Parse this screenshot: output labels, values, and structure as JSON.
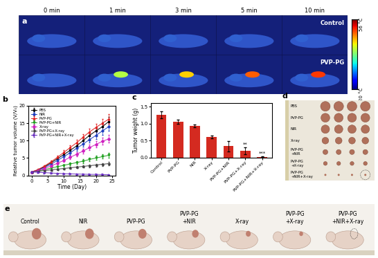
{
  "chart_data": [
    {
      "type": "line",
      "title": "b",
      "x_label": "Time (Day)",
      "y_label": "Relative tumor volume (V/V₀)",
      "x": [
        0,
        2,
        4,
        6,
        8,
        10,
        12,
        14,
        16,
        18,
        20,
        22,
        24
      ],
      "xlim": [
        -1,
        26
      ],
      "xticks": [
        0,
        5,
        10,
        15,
        20,
        25
      ],
      "ylim": [
        0,
        20
      ],
      "yticks": [
        0,
        5,
        10,
        15,
        20
      ],
      "legend": "upper left",
      "series": [
        {
          "name": "PBS",
          "color": "#000000",
          "marker": "square",
          "values": [
            1,
            1.6,
            2.5,
            3.6,
            4.8,
            6.0,
            7.2,
            8.5,
            10.0,
            11.5,
            12.8,
            14.0,
            15.5
          ],
          "errors": [
            0,
            0.2,
            0.3,
            0.4,
            0.5,
            0.6,
            0.7,
            0.8,
            0.9,
            1.0,
            1.1,
            1.2,
            1.4
          ]
        },
        {
          "name": "NIR",
          "color": "#2040c0",
          "marker": "circle",
          "values": [
            1,
            1.5,
            2.3,
            3.2,
            4.3,
            5.4,
            6.5,
            7.8,
            9.0,
            10.3,
            11.5,
            12.8,
            14.0
          ],
          "errors": [
            0,
            0.2,
            0.3,
            0.3,
            0.4,
            0.5,
            0.6,
            0.7,
            0.8,
            0.9,
            1.0,
            1.1,
            1.2
          ]
        },
        {
          "name": "PVP-PG",
          "color": "#e02020",
          "marker": "triangle_up",
          "values": [
            1,
            1.7,
            2.7,
            3.9,
            5.2,
            6.6,
            8.0,
            9.4,
            11.0,
            12.5,
            13.8,
            15.0,
            16.2
          ],
          "errors": [
            0,
            0.2,
            0.3,
            0.4,
            0.5,
            0.6,
            0.7,
            0.8,
            0.9,
            1.0,
            1.1,
            1.2,
            1.4
          ]
        },
        {
          "name": "PVP-PG+NIR",
          "color": "#20a020",
          "marker": "triangle_down",
          "values": [
            1,
            1.3,
            1.7,
            2.1,
            2.5,
            2.9,
            3.3,
            3.7,
            4.1,
            4.6,
            5.0,
            5.4,
            5.8
          ],
          "errors": [
            0,
            0.1,
            0.2,
            0.2,
            0.3,
            0.3,
            0.4,
            0.4,
            0.5,
            0.5,
            0.6,
            0.6,
            0.7
          ]
        },
        {
          "name": "X-ray",
          "color": "#d020c0",
          "marker": "diamond",
          "values": [
            1,
            1.4,
            2.0,
            2.7,
            3.5,
            4.3,
            5.2,
            6.1,
            7.0,
            8.0,
            8.9,
            9.8,
            10.5
          ],
          "errors": [
            0,
            0.1,
            0.2,
            0.3,
            0.3,
            0.4,
            0.5,
            0.6,
            0.7,
            0.8,
            0.9,
            1.0,
            1.1
          ]
        },
        {
          "name": "PVP-PG+X-ray",
          "color": "#404040",
          "marker": "triangle_left",
          "values": [
            1,
            1.2,
            1.4,
            1.6,
            1.8,
            2.0,
            2.2,
            2.4,
            2.6,
            2.8,
            3.0,
            3.2,
            3.4
          ],
          "errors": [
            0,
            0.1,
            0.1,
            0.2,
            0.2,
            0.2,
            0.3,
            0.3,
            0.3,
            0.4,
            0.4,
            0.4,
            0.5
          ]
        },
        {
          "name": "PVP-PG+NIR+X-ray",
          "color": "#6a30c0",
          "marker": "triangle_right",
          "values": [
            1,
            0.9,
            0.8,
            0.7,
            0.6,
            0.5,
            0.45,
            0.4,
            0.35,
            0.3,
            0.3,
            0.25,
            0.2
          ],
          "errors": [
            0,
            0.1,
            0.1,
            0.1,
            0.1,
            0.1,
            0.1,
            0.1,
            0.1,
            0.1,
            0.1,
            0.1,
            0.1
          ]
        }
      ]
    },
    {
      "type": "bar",
      "title": "c",
      "y_label": "Tumor weight (g)",
      "categories": [
        "Control",
        "PVP-PG",
        "NIR",
        "X-ray",
        "PVP-PG+NIR",
        "PVP-PG+X-ray",
        "PVP-PG+NIR+X-ray"
      ],
      "values": [
        1.25,
        1.05,
        0.93,
        0.6,
        0.33,
        0.2,
        0.02
      ],
      "errors": [
        0.1,
        0.06,
        0.05,
        0.04,
        0.15,
        0.1,
        0.01
      ],
      "color": "#d42a20",
      "ylim": [
        0,
        1.6
      ],
      "yticks": [
        {
          "value": 0,
          "label": "0.0"
        },
        {
          "value": 0.5,
          "label": "0.5"
        },
        {
          "value": 1.0,
          "label": "1.0"
        },
        {
          "value": 1.5,
          "label": "1.5"
        }
      ],
      "annotations": [
        {
          "text": "**",
          "category": "PVP-PG+X-ray"
        },
        {
          "text": "***",
          "category": "PVP-PG+NIR+X-ray"
        }
      ]
    }
  ],
  "thermal_imaging": {
    "title": "a",
    "times": [
      "0 min",
      "1 min",
      "3 min",
      "5 min",
      "10 min"
    ],
    "rows": [
      "Control",
      "PVP-PG"
    ],
    "colorbar": {
      "range": [
        20,
        56
      ],
      "ticks": [
        {
          "value": 56,
          "label": "56 °C"
        },
        {
          "value": 20,
          "label": "20 °C"
        }
      ]
    }
  },
  "tumor_photo": {
    "title": "d",
    "rows": [
      "PBS",
      "PVP-PG",
      "NIR",
      "X-ray",
      "PVP-PG\n+NIR",
      "PVP-PG\n+X-ray",
      "PVP-PG\n+NIR+X-ray"
    ]
  },
  "mouse_photo": {
    "title": "e",
    "groups": [
      "Control",
      "NIR",
      "PVP-PG",
      "PVP-PG\n+NIR",
      "X-ray",
      "PVP-PG\n+X-ray",
      "PVP-PG\n+NIR+X-ray"
    ]
  }
}
